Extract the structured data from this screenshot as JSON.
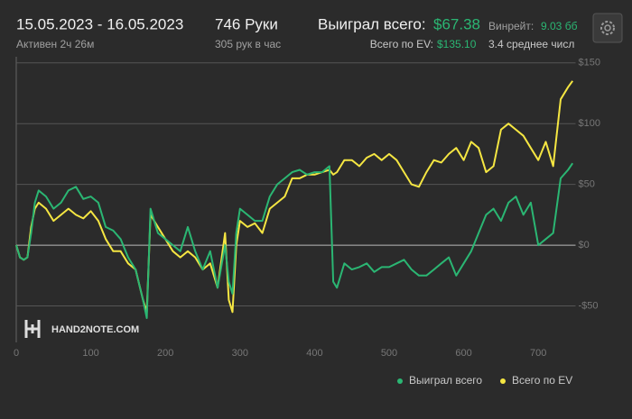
{
  "header": {
    "date_range": "15.05.2023 - 16.05.2023",
    "active": "Активен 2ч 26м",
    "hands": "746 Руки",
    "hands_per_hour": "305 рук в час",
    "won_label": "Выиграл всего:",
    "won_value": "$67.38",
    "ev_label": "Всего по EV:",
    "ev_value": "$135.10",
    "winrate_label": "Винрейт:",
    "winrate_value": "9.03 бб",
    "avg": "3.4 среднее числ"
  },
  "chart_data": {
    "type": "line",
    "watermark": "HAND2NOTE.COM",
    "x": [
      0,
      5,
      10,
      15,
      20,
      25,
      30,
      40,
      50,
      60,
      70,
      80,
      90,
      100,
      110,
      120,
      130,
      140,
      150,
      160,
      170,
      175,
      180,
      190,
      200,
      210,
      220,
      230,
      240,
      250,
      260,
      270,
      280,
      285,
      290,
      295,
      300,
      310,
      320,
      330,
      340,
      350,
      360,
      370,
      380,
      390,
      400,
      410,
      420,
      425,
      430,
      440,
      450,
      460,
      470,
      480,
      490,
      500,
      510,
      520,
      530,
      540,
      550,
      560,
      570,
      580,
      590,
      600,
      610,
      620,
      630,
      640,
      650,
      660,
      670,
      680,
      690,
      700,
      710,
      720,
      730,
      740,
      746
    ],
    "series": [
      {
        "name": "Выиграл всего",
        "color": "#2bb673",
        "values": [
          0,
          -10,
          -12,
          -10,
          10,
          35,
          45,
          40,
          30,
          35,
          45,
          48,
          38,
          40,
          35,
          15,
          12,
          5,
          -10,
          -20,
          -45,
          -60,
          30,
          10,
          5,
          0,
          -5,
          15,
          -5,
          -20,
          -5,
          -35,
          0,
          -30,
          -40,
          10,
          30,
          25,
          20,
          20,
          40,
          50,
          55,
          60,
          62,
          58,
          60,
          60,
          65,
          -30,
          -35,
          -15,
          -20,
          -18,
          -15,
          -22,
          -18,
          -18,
          -15,
          -12,
          -20,
          -25,
          -25,
          -20,
          -15,
          -10,
          -25,
          -15,
          -5,
          10,
          25,
          30,
          20,
          35,
          40,
          25,
          35,
          0,
          5,
          10,
          55,
          62,
          67.38
        ]
      },
      {
        "name": "Всего по EV",
        "color": "#f5e642",
        "values": [
          0,
          -10,
          -12,
          -10,
          15,
          30,
          35,
          30,
          20,
          25,
          30,
          25,
          22,
          28,
          20,
          5,
          -5,
          -5,
          -15,
          -20,
          -45,
          -55,
          25,
          15,
          5,
          -5,
          -10,
          -5,
          -10,
          -20,
          -15,
          -35,
          10,
          -45,
          -55,
          0,
          20,
          15,
          18,
          10,
          30,
          35,
          40,
          55,
          55,
          58,
          58,
          60,
          62,
          58,
          60,
          70,
          70,
          65,
          72,
          75,
          70,
          75,
          70,
          60,
          50,
          48,
          60,
          70,
          68,
          75,
          80,
          70,
          85,
          80,
          60,
          65,
          95,
          100,
          95,
          90,
          80,
          70,
          85,
          65,
          120,
          130,
          135.1
        ]
      }
    ],
    "xlim": [
      0,
      750
    ],
    "xticks": [
      0,
      100,
      200,
      300,
      400,
      500,
      600,
      700
    ],
    "ylim": [
      -80,
      155
    ],
    "yticks": [
      {
        "value": -50,
        "label": "-$50"
      },
      {
        "value": 0,
        "label": "$0"
      },
      {
        "value": 50,
        "label": "$50"
      },
      {
        "value": 100,
        "label": "$100"
      },
      {
        "value": 150,
        "label": "$150"
      }
    ],
    "grid": true
  }
}
